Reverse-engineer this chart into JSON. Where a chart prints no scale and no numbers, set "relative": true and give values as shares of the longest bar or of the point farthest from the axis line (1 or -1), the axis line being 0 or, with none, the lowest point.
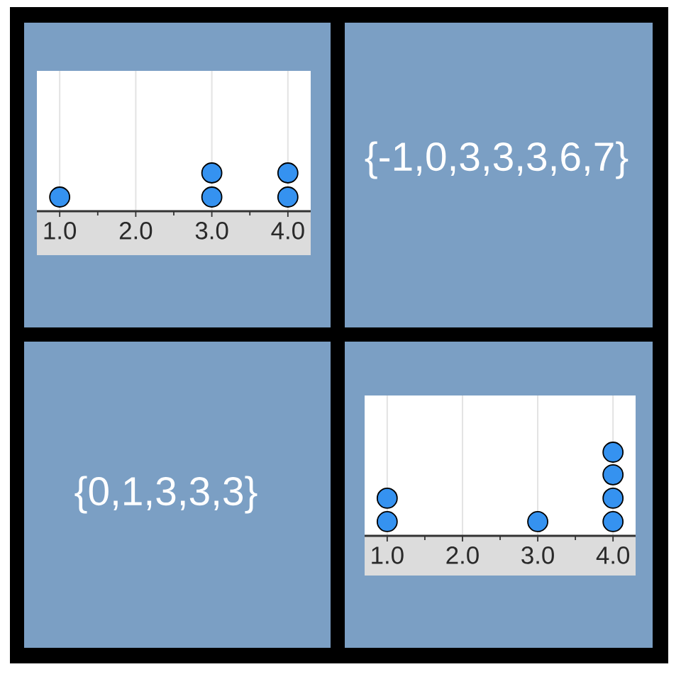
{
  "chart_data": [
    {
      "type": "scatter",
      "x": [
        1,
        3,
        3,
        4,
        4
      ],
      "values": [
        0.37,
        0.37,
        1,
        0.37,
        1
      ],
      "relative": true,
      "color": "#3592f0",
      "marker": "circle",
      "xlim": [
        0.7,
        4.3
      ],
      "xticks": [
        {
          "value": 1,
          "label": "1.0"
        },
        {
          "value": 1.5,
          "label": null
        },
        {
          "value": 2,
          "label": "2.0"
        },
        {
          "value": 2.5,
          "label": null
        },
        {
          "value": 3,
          "label": "3.0"
        },
        {
          "value": 3.5,
          "label": null
        },
        {
          "value": 4,
          "label": "4.0"
        }
      ],
      "grid": "x",
      "tick_labels": "x"
    },
    {
      "type": "other",
      "title": "{-1,0,3,3,3,6,7}"
    },
    {
      "type": "other",
      "title": "{0,1,3,3,3}"
    },
    {
      "type": "scatter",
      "x": [
        1,
        1,
        3,
        4,
        4,
        4,
        4
      ],
      "values": [
        0.17,
        0.45,
        0.17,
        0.17,
        0.45,
        0.73,
        1
      ],
      "relative": true,
      "color": "#3592f0",
      "marker": "circle",
      "xlim": [
        0.7,
        4.3
      ],
      "xticks": [
        {
          "value": 1,
          "label": "1.0"
        },
        {
          "value": 1.5,
          "label": null
        },
        {
          "value": 2,
          "label": "2.0"
        },
        {
          "value": 2.5,
          "label": null
        },
        {
          "value": 3,
          "label": "3.0"
        },
        {
          "value": 3.5,
          "label": null
        },
        {
          "value": 4,
          "label": "4.0"
        }
      ],
      "grid": "x",
      "tick_labels": "x"
    }
  ]
}
